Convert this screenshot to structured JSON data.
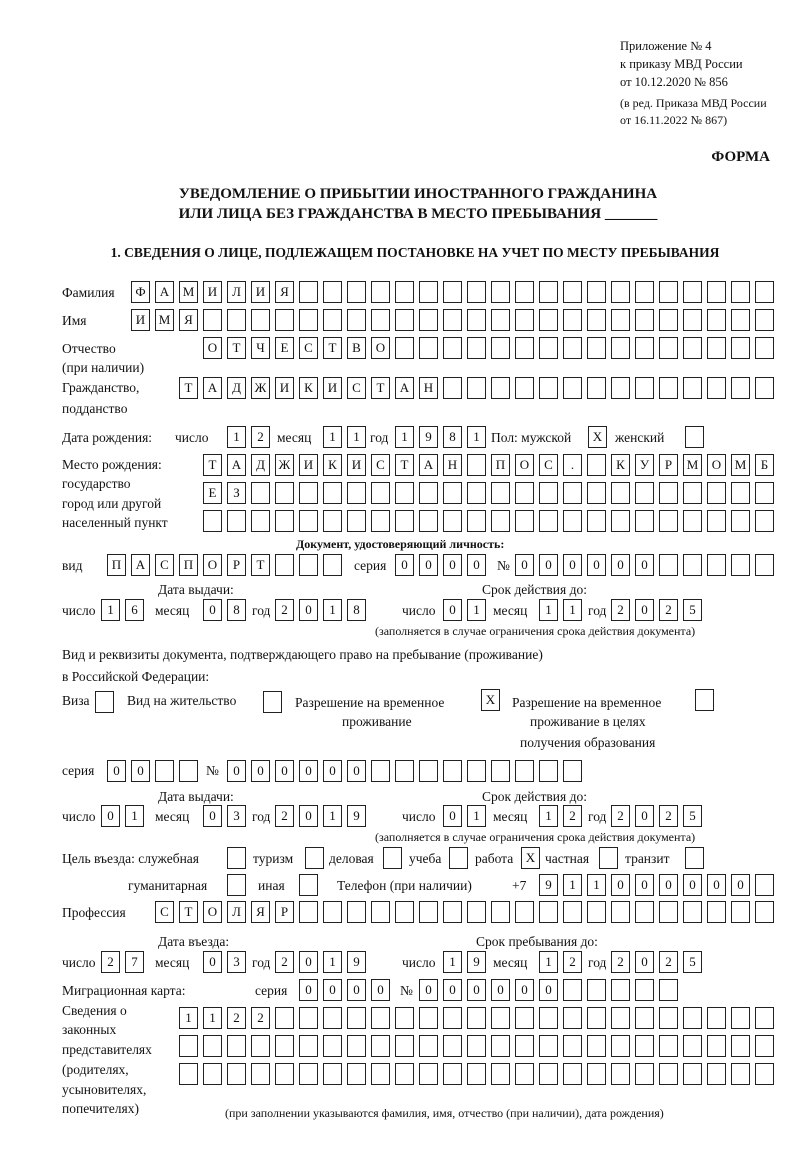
{
  "header": {
    "appendix": [
      "Приложение № 4",
      "к приказу МВД России",
      "от 10.12.2020 № 856"
    ],
    "amendment": [
      "(в ред. Приказа МВД России",
      "от 16.11.2022 № 867)"
    ],
    "form_label": "ФОРМА",
    "title_line1": "УВЕДОМЛЕНИЕ О ПРИБЫТИИ ИНОСТРАННОГО ГРАЖДАНИНА",
    "title_line2": "ИЛИ ЛИЦА БЕЗ ГРАЖДАНСТВА В МЕСТО ПРЕБЫВАНИЯ _______",
    "section1": "1. СВЕДЕНИЯ О ЛИЦЕ, ПОДЛЕЖАЩЕМ ПОСТАНОВКЕ НА УЧЕТ ПО МЕСТУ ПРЕБЫВАНИЯ"
  },
  "labels": {
    "surname": "Фамилия",
    "name": "Имя",
    "patronymic1": "Отчество",
    "patronymic2": "(при наличии)",
    "citizenship1": "Гражданство,",
    "citizenship2": "подданство",
    "birth_date": "Дата рождения:",
    "day": "число",
    "month": "месяц",
    "year": "год",
    "sex": "Пол: мужской",
    "female": "женский",
    "birthplace": [
      "Место рождения:",
      "государство",
      "город или другой",
      "населенный пункт"
    ],
    "id_doc": "Документ, удостоверяющий личность:",
    "kind": "вид",
    "series": "серия",
    "number": "№",
    "issue_date": "Дата выдачи:",
    "valid_until": "Срок действия до:",
    "validity_note": "(заполняется в случае ограничения срока действия документа)",
    "right_doc1": "Вид и реквизиты документа, подтверждающего право на пребывание (проживание)",
    "right_doc2": "в Российской Федерации:",
    "visa": "Виза",
    "residence": "Вид на жительство",
    "temp_permit": [
      "Разрешение на временное",
      "проживание"
    ],
    "temp_permit_edu": [
      "Разрешение на временное",
      "проживание в целях",
      "получения образования"
    ],
    "purpose": "Цель въезда: служебная",
    "tourism": "туризм",
    "business": "деловая",
    "study": "учеба",
    "work": "работа",
    "private": "частная",
    "transit": "транзит",
    "humanitarian": "гуманитарная",
    "other": "иная",
    "phone": "Телефон (при наличии)",
    "phone_prefix": "+7",
    "profession": "Профессия",
    "entry_date": "Дата въезда:",
    "stay_until": "Срок пребывания до:",
    "migration_card": "Миграционная карта:",
    "reps": [
      "Сведения о",
      "законных",
      "представителях",
      "(родителях,",
      "усыновителях,",
      "попечителях)"
    ],
    "reps_note": "(при заполнении указываются фамилия, имя, отчество (при наличии), дата рождения)"
  },
  "fields": {
    "surname": "ФАМИЛИЯ",
    "name": "ИМЯ",
    "patronymic": "ОТЧЕСТВО",
    "citizenship": "ТАДЖИКИСТАН",
    "birth_day": "12",
    "birth_month": "11",
    "birth_year": "1981",
    "male": "X",
    "female": "",
    "birthplace1": "ТАДЖИКИСТАН ПОС. КУРМОМБ",
    "birthplace2": "ЕЗ",
    "birthplace3": "",
    "doc_kind": "ПАСПОРТ",
    "doc_series": "0000",
    "doc_number": "000000",
    "doc_issue_day": "16",
    "doc_issue_month": "08",
    "doc_issue_year": "2018",
    "doc_valid_day": "01",
    "doc_valid_month": "11",
    "doc_valid_year": "2025",
    "visa": "",
    "residence": "",
    "temp_permit": "X",
    "temp_permit_edu": "",
    "right_series": "00",
    "right_number": "000000",
    "right_issue_day": "01",
    "right_issue_month": "03",
    "right_issue_year": "2019",
    "right_valid_day": "01",
    "right_valid_month": "12",
    "right_valid_year": "2025",
    "p_service": "",
    "p_tourism": "",
    "p_business": "",
    "p_study": "",
    "p_work": "X",
    "p_private": "",
    "p_transit": "",
    "p_humanitarian": "",
    "p_other": "",
    "phone": "911000000",
    "profession": "СТОЛЯР",
    "entry_day": "27",
    "entry_month": "03",
    "entry_year": "2019",
    "stay_day": "19",
    "stay_month": "12",
    "stay_year": "2025",
    "mc_series": "0000",
    "mc_number": "000000",
    "reps1": "1122",
    "reps2": "",
    "reps3": ""
  }
}
